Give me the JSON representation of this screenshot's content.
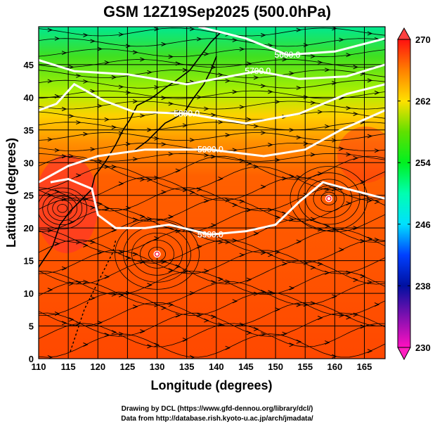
{
  "chart_data": {
    "type": "heatmap",
    "title": "GSM 12Z19Sep2025 (500.0hPa)",
    "xlabel": "Longitude (degrees)",
    "ylabel": "Latitude  (degrees)",
    "xlim": [
      110,
      168.5
    ],
    "ylim": [
      0,
      50.8
    ],
    "xticks": [
      110,
      115,
      120,
      125,
      130,
      135,
      140,
      145,
      150,
      155,
      160,
      165
    ],
    "yticks": [
      0,
      5,
      10,
      15,
      20,
      25,
      30,
      35,
      40,
      45
    ],
    "colorbar": {
      "label_ticks": [
        230,
        238,
        246,
        254,
        262,
        270
      ],
      "min": 230,
      "max": 270,
      "colors": [
        "#ff10c0",
        "#7010a0",
        "#0010a0",
        "#0030ff",
        "#0090ff",
        "#00e0ff",
        "#00ffc0",
        "#00f040",
        "#40e000",
        "#c0ff00",
        "#ffe000",
        "#ff9000",
        "#ff5000",
        "#ff2020"
      ]
    },
    "contours": [
      {
        "level": "5600.0",
        "points": [
          [
            137,
            50.8
          ],
          [
            145,
            49
          ],
          [
            152,
            46.5
          ],
          [
            160,
            47
          ],
          [
            168.5,
            49
          ]
        ]
      },
      {
        "level": "5700.0",
        "points": [
          [
            110,
            45.7
          ],
          [
            116,
            44
          ],
          [
            125,
            43.5
          ],
          [
            135,
            42
          ],
          [
            147,
            44
          ],
          [
            154,
            42.8
          ],
          [
            162,
            43.2
          ],
          [
            168.5,
            45
          ]
        ]
      },
      {
        "level": "5800.0",
        "points": [
          [
            110,
            38
          ],
          [
            113,
            39
          ],
          [
            116,
            42
          ],
          [
            121,
            39.5
          ],
          [
            126,
            37.8
          ],
          [
            135,
            37.5
          ],
          [
            145,
            36
          ],
          [
            154,
            37.5
          ],
          [
            162,
            40.5
          ],
          [
            168.5,
            42
          ]
        ]
      },
      {
        "level": "5900.0",
        "points": [
          [
            110,
            27
          ],
          [
            115,
            29.5
          ],
          [
            120,
            31
          ],
          [
            128,
            32
          ],
          [
            139,
            32
          ],
          [
            148,
            31
          ],
          [
            155,
            32
          ],
          [
            161,
            35
          ],
          [
            168.5,
            38
          ]
        ]
      },
      {
        "level": "5900.0",
        "points": [
          [
            112,
            27
          ],
          [
            115,
            27.5
          ],
          [
            119,
            26
          ],
          [
            120,
            22
          ],
          [
            123,
            20
          ],
          [
            128,
            20
          ],
          [
            132,
            20.5
          ],
          [
            139,
            19
          ],
          [
            145,
            19.5
          ],
          [
            150,
            20.5
          ],
          [
            154,
            24
          ],
          [
            158,
            27
          ],
          [
            162,
            26
          ],
          [
            168.5,
            24.5
          ]
        ]
      }
    ],
    "vortex_centers": [
      [
        130,
        16
      ],
      [
        159,
        24.5
      ]
    ],
    "credits": [
      "Drawing by DCL (https://www.gfd-dennou.org/library/dcl/)",
      "Data from http://database.rish.kyoto-u.ac.jp/arch/jmadata/"
    ]
  }
}
